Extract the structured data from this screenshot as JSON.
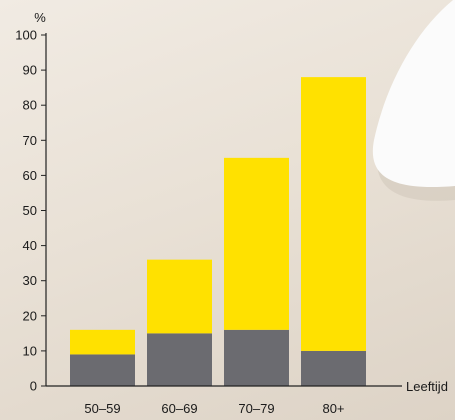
{
  "colors": {
    "total": "#ffe100",
    "lower": "#6b6b70",
    "axis": "#222222",
    "mouse": "#fbfbfb",
    "mouse_shadow": "#cfc6ba"
  },
  "chart_data": {
    "type": "bar",
    "stacked": true,
    "ylabel": "%",
    "xlabel": "Leeftijd",
    "categories": [
      "50–59",
      "60–69",
      "70–79",
      "80+"
    ],
    "ylim": [
      0,
      100
    ],
    "yticks": [
      0,
      10,
      20,
      30,
      40,
      50,
      60,
      70,
      80,
      90,
      100
    ],
    "grid": false,
    "series": [
      {
        "values": [
          9,
          15,
          16,
          10
        ],
        "color": "#6b6b70"
      },
      {
        "values": [
          7,
          21,
          49,
          78
        ],
        "color": "#ffe100"
      }
    ],
    "totals": [
      16,
      36,
      65,
      88
    ]
  }
}
